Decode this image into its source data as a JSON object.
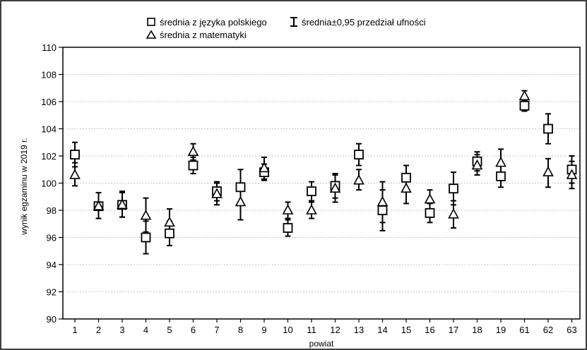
{
  "chart_data": {
    "type": "scatter",
    "title": "",
    "xlabel": "powiat",
    "ylabel": "wynik egzaminu w 2019 r.",
    "ylim": [
      90,
      110
    ],
    "yticks": [
      90,
      92,
      94,
      96,
      98,
      100,
      102,
      104,
      106,
      108,
      110
    ],
    "grid": "horizontal",
    "legend_placement": "top",
    "legend": {
      "polish": "średnia z języka polskiego",
      "ci": "średnia±0,95 przedział ufności",
      "math": "średnia z matematyki"
    },
    "categories": [
      "1",
      "2",
      "3",
      "4",
      "5",
      "6",
      "7",
      "8",
      "9",
      "10",
      "11",
      "12",
      "13",
      "14",
      "15",
      "16",
      "17",
      "18",
      "19",
      "61",
      "62",
      "63"
    ],
    "series": [
      {
        "name": "średnia z języka polskiego",
        "marker": "square",
        "values": [
          102.1,
          98.3,
          98.4,
          96.0,
          96.3,
          101.3,
          99.4,
          99.7,
          100.8,
          96.7,
          99.4,
          99.8,
          102.1,
          98.0,
          100.4,
          97.8,
          99.6,
          101.6,
          100.5,
          105.7,
          104.0,
          101.0
        ],
        "ci_low": [
          101.2,
          97.4,
          97.5,
          94.8,
          95.4,
          100.7,
          98.7,
          98.4,
          100.2,
          96.1,
          98.7,
          98.9,
          101.3,
          96.5,
          99.4,
          97.1,
          98.4,
          100.9,
          99.7,
          105.3,
          102.9,
          100.0
        ],
        "ci_high": [
          103.0,
          99.3,
          99.4,
          97.2,
          97.2,
          101.9,
          100.1,
          101.0,
          101.4,
          97.3,
          100.1,
          100.7,
          102.9,
          99.5,
          101.3,
          98.5,
          100.8,
          102.3,
          101.3,
          106.1,
          105.1,
          102.0
        ]
      },
      {
        "name": "średnia z matematyki",
        "marker": "triangle",
        "values": [
          100.6,
          98.3,
          98.4,
          97.6,
          97.1,
          102.3,
          99.2,
          98.6,
          101.1,
          98.0,
          98.0,
          99.6,
          100.2,
          98.6,
          99.6,
          98.8,
          97.7,
          101.3,
          101.5,
          106.4,
          100.8,
          100.6
        ],
        "ci_low": [
          99.8,
          97.4,
          97.5,
          96.4,
          96.2,
          101.7,
          98.4,
          97.3,
          100.3,
          97.4,
          97.4,
          98.6,
          99.5,
          97.1,
          98.5,
          98.1,
          96.7,
          100.6,
          100.6,
          106.0,
          99.7,
          99.6
        ],
        "ci_high": [
          101.5,
          99.3,
          99.3,
          98.9,
          98.1,
          102.9,
          100.0,
          99.9,
          101.9,
          98.6,
          98.6,
          100.6,
          101.0,
          100.1,
          100.7,
          99.5,
          98.7,
          102.1,
          102.5,
          106.8,
          101.8,
          101.6
        ]
      }
    ]
  }
}
